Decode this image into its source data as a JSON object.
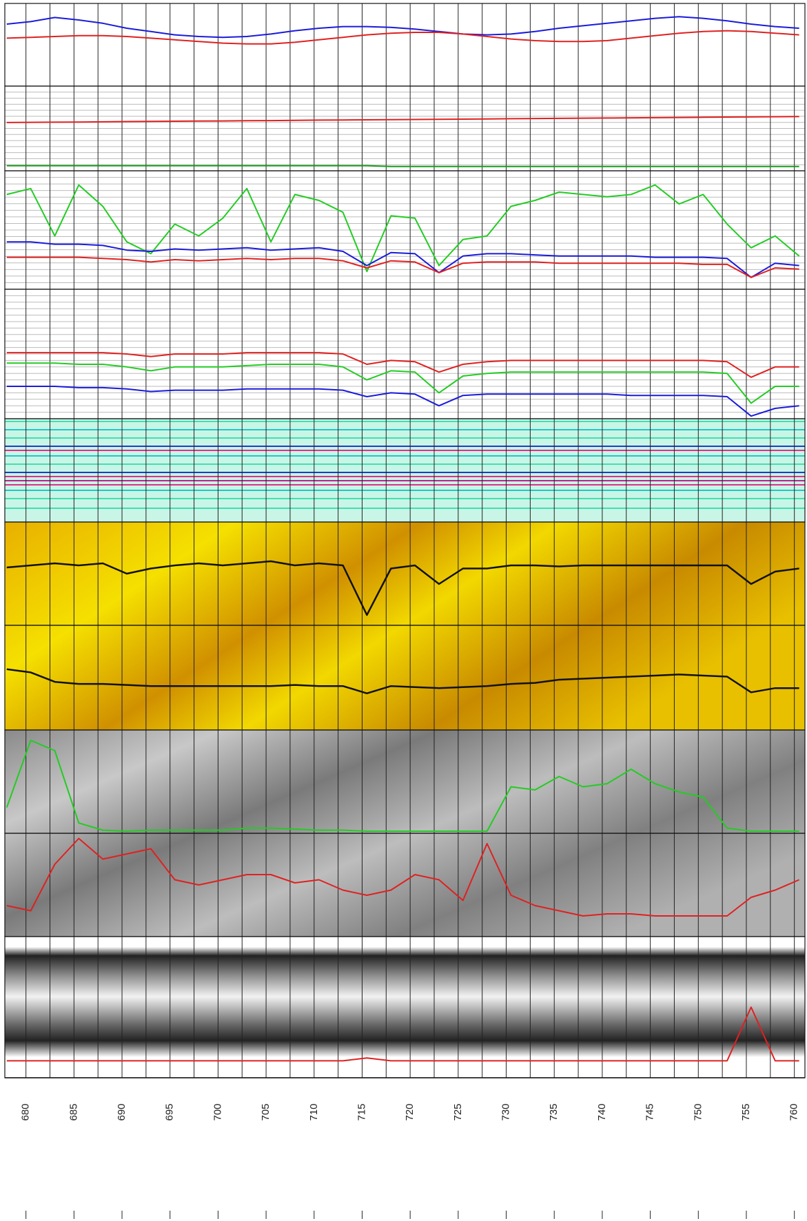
{
  "chart_data": {
    "type": "line",
    "x": [
      678,
      680.5,
      683,
      685.5,
      688,
      690.5,
      693,
      695.5,
      698,
      700.5,
      703,
      705.5,
      708,
      710.5,
      713,
      715.5,
      718,
      720.5,
      723,
      725.5,
      728,
      730.5,
      733,
      735.5,
      738,
      740.5,
      743,
      745.5,
      748,
      750.5,
      753,
      755.5,
      758,
      760.5
    ],
    "xlim": [
      677.8,
      761.1
    ],
    "xticks": [
      680,
      685,
      690,
      695,
      700,
      705,
      710,
      715,
      720,
      725,
      730,
      735,
      740,
      745,
      750,
      755,
      760
    ],
    "tracks": [
      {
        "ylim": [
          0,
          100
        ],
        "series": [
          {
            "color": "#1a1adb",
            "values": [
              75,
              78,
              83,
              80,
              76,
              70,
              66,
              62,
              60,
              59,
              60,
              63,
              67,
              70,
              72,
              72,
              71,
              69,
              66,
              63,
              62,
              63,
              66,
              70,
              73,
              76,
              79,
              82,
              84,
              82,
              79,
              75,
              72,
              70
            ]
          },
          {
            "color": "#e02020",
            "values": [
              58,
              59,
              60,
              61,
              61,
              60,
              58,
              56,
              54,
              52,
              51,
              51,
              53,
              56,
              59,
              62,
              64,
              65,
              65,
              63,
              60,
              57,
              55,
              54,
              54,
              55,
              58,
              61,
              64,
              66,
              67,
              66,
              64,
              62
            ]
          }
        ]
      },
      {
        "ylim": [
          0,
          100
        ],
        "series": [
          {
            "color": "#e02020",
            "values": [
              57,
              57.2,
              57.4,
              57.6,
              57.8,
              58.1,
              58.3,
              58.5,
              58.7,
              58.9,
              59.1,
              59.3,
              59.5,
              59.8,
              60,
              60.2,
              60.4,
              60.6,
              60.8,
              61,
              61.2,
              61.5,
              61.7,
              61.9,
              62.1,
              62.3,
              62.5,
              62.7,
              62.9,
              63.2,
              63.4,
              63.6,
              63.8,
              64
            ]
          },
          {
            "color": "#1a9a1a",
            "values": [
              6,
              6,
              6,
              6,
              6,
              6,
              6,
              6,
              6,
              6,
              6,
              6,
              6,
              6,
              6,
              6,
              5,
              5,
              5,
              5,
              5,
              5,
              5,
              5,
              5,
              5,
              5,
              5,
              5,
              5,
              5,
              5,
              5,
              5
            ]
          }
        ]
      },
      {
        "ylim": [
          0,
          100
        ],
        "series": [
          {
            "color": "#22cc22",
            "values": [
              80,
              85,
              45,
              88,
              70,
              40,
              30,
              55,
              45,
              60,
              85,
              40,
              80,
              75,
              65,
              15,
              62,
              60,
              20,
              42,
              45,
              70,
              75,
              82,
              80,
              78,
              80,
              88,
              72,
              80,
              55,
              35,
              45,
              28
            ]
          },
          {
            "color": "#1a1adb",
            "values": [
              40,
              40,
              38,
              38,
              37,
              33,
              32,
              34,
              33,
              34,
              35,
              33,
              34,
              35,
              32,
              20,
              31,
              30,
              14,
              28,
              30,
              30,
              29,
              28,
              28,
              28,
              28,
              27,
              27,
              27,
              26,
              10,
              22,
              20
            ]
          },
          {
            "color": "#e02020",
            "values": [
              27,
              27,
              27,
              27,
              26,
              25,
              23,
              25,
              24,
              25,
              26,
              25,
              26,
              26,
              24,
              18,
              24,
              23,
              14,
              22,
              23,
              23,
              23,
              22,
              22,
              22,
              22,
              22,
              22,
              21,
              21,
              10,
              18,
              17
            ]
          }
        ]
      },
      {
        "ylim": [
          0,
          100
        ],
        "series": [
          {
            "color": "#e02020",
            "values": [
              51,
              51,
              51,
              51,
              51,
              50,
              48,
              50,
              50,
              50,
              51,
              51,
              51,
              51,
              50,
              42,
              45,
              44,
              36,
              42,
              44,
              45,
              45,
              45,
              45,
              45,
              45,
              45,
              45,
              45,
              44,
              32,
              40,
              40
            ]
          },
          {
            "color": "#22cc22",
            "values": [
              43,
              43,
              43,
              42,
              42,
              40,
              37,
              40,
              40,
              40,
              41,
              42,
              42,
              42,
              40,
              30,
              37,
              36,
              20,
              33,
              35,
              36,
              36,
              36,
              36,
              36,
              36,
              36,
              36,
              36,
              35,
              12,
              25,
              25
            ]
          },
          {
            "color": "#1a1adb",
            "values": [
              25,
              25,
              25,
              24,
              24,
              23,
              21,
              22,
              22,
              22,
              23,
              23,
              23,
              23,
              22,
              17,
              20,
              19,
              10,
              18,
              19,
              19,
              19,
              19,
              19,
              19,
              18,
              18,
              18,
              18,
              17,
              2,
              8,
              10
            ]
          }
        ]
      },
      {
        "ylim": [
          0,
          100
        ],
        "series": []
      },
      {
        "ylim": [
          0,
          100
        ],
        "series": [
          {
            "color": "#111111",
            "values": [
              56,
              58,
              60,
              58,
              60,
              50,
              55,
              58,
              60,
              58,
              60,
              62,
              58,
              60,
              58,
              10,
              55,
              58,
              40,
              55,
              55,
              58,
              58,
              57,
              58,
              58,
              58,
              58,
              58,
              58,
              58,
              40,
              52,
              55
            ]
          }
        ]
      },
      {
        "ylim": [
          0,
          100
        ],
        "series": [
          {
            "color": "#111111",
            "values": [
              58,
              55,
              46,
              44,
              44,
              43,
              42,
              42,
              42,
              42,
              42,
              42,
              43,
              42,
              42,
              35,
              42,
              41,
              40,
              41,
              42,
              44,
              45,
              48,
              49,
              50,
              51,
              52,
              53,
              52,
              51,
              36,
              40,
              40
            ]
          }
        ]
      },
      {
        "ylim": [
          0,
          100
        ],
        "series": [
          {
            "color": "#22cc22",
            "values": [
              25,
              90,
              80,
              10,
              3,
              2,
              3,
              3,
              3,
              3,
              5,
              5,
              4,
              3,
              3,
              2,
              2,
              2,
              2,
              2,
              2,
              45,
              42,
              55,
              45,
              48,
              62,
              48,
              40,
              35,
              5,
              2,
              2,
              2
            ]
          }
        ]
      },
      {
        "ylim": [
          0,
          100
        ],
        "series": [
          {
            "color": "#e02020",
            "values": [
              30,
              25,
              70,
              95,
              75,
              80,
              85,
              55,
              50,
              55,
              60,
              60,
              52,
              55,
              45,
              40,
              45,
              60,
              55,
              35,
              90,
              40,
              30,
              25,
              20,
              22,
              22,
              20,
              20,
              20,
              20,
              38,
              45,
              55
            ]
          }
        ]
      },
      {
        "ylim": [
          0,
          100
        ],
        "series": [
          {
            "color": "#e02020",
            "values": [
              12,
              12,
              12,
              12,
              12,
              12,
              12,
              12,
              12,
              12,
              12,
              12,
              12,
              12,
              12,
              14,
              12,
              12,
              12,
              12,
              12,
              12,
              12,
              12,
              12,
              12,
              12,
              12,
              12,
              12,
              12,
              50,
              12,
              12
            ]
          }
        ]
      }
    ]
  }
}
